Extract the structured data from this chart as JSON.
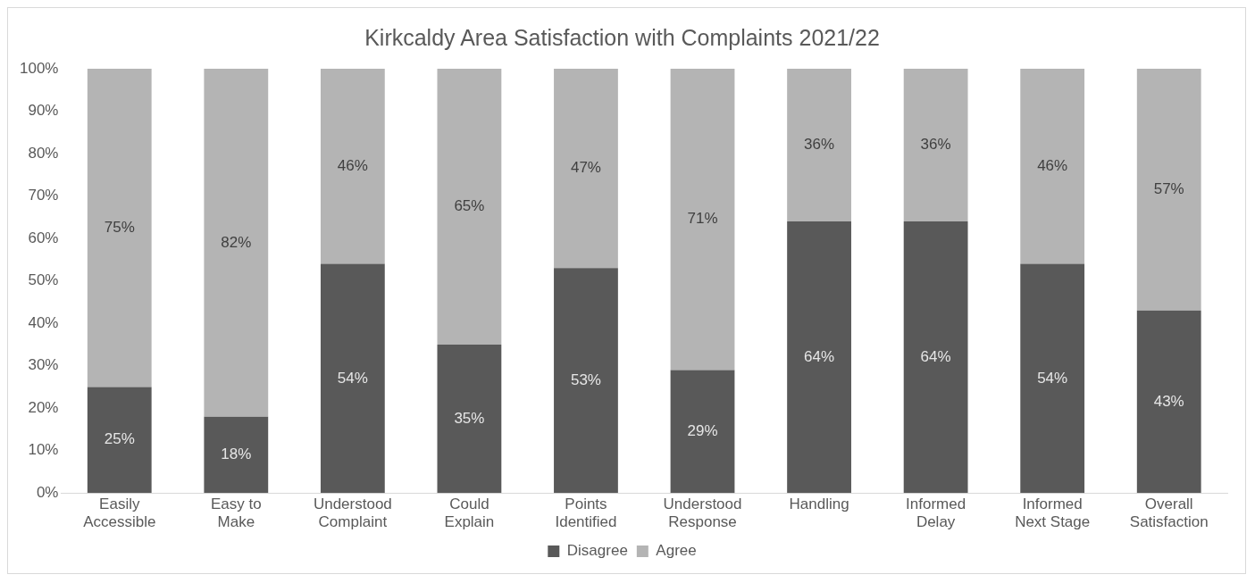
{
  "chart_data": {
    "type": "bar",
    "title": "Kirkcaldy Area Satisfaction with Complaints 2021/22",
    "stacked": true,
    "categories": [
      "Easily Accessible",
      "Easy to Make",
      "Understood Complaint",
      "Could Explain",
      "Points Identified",
      "Understood Response",
      "Handling",
      "Informed Delay",
      "Informed Next Stage",
      "Overall Satisfaction"
    ],
    "series": [
      {
        "name": "Disagree",
        "color": "#595959",
        "values": [
          25,
          18,
          54,
          35,
          53,
          29,
          64,
          64,
          54,
          43
        ],
        "value_labels": [
          "25%",
          "18%",
          "54%",
          "35%",
          "53%",
          "29%",
          "64%",
          "64%",
          "54%",
          "43%"
        ]
      },
      {
        "name": "Agree",
        "color": "#b4b4b4",
        "values": [
          75,
          82,
          46,
          65,
          47,
          71,
          36,
          36,
          46,
          57
        ],
        "value_labels": [
          "75%",
          "82%",
          "46%",
          "65%",
          "47%",
          "71%",
          "36%",
          "36%",
          "46%",
          "57%"
        ]
      }
    ],
    "ylim": [
      0,
      100
    ],
    "yticks": [
      {
        "value": 0,
        "label": "0%"
      },
      {
        "value": 10,
        "label": "10%"
      },
      {
        "value": 20,
        "label": "20%"
      },
      {
        "value": 30,
        "label": "30%"
      },
      {
        "value": 40,
        "label": "40%"
      },
      {
        "value": 50,
        "label": "50%"
      },
      {
        "value": 60,
        "label": "60%"
      },
      {
        "value": 70,
        "label": "70%"
      },
      {
        "value": 80,
        "label": "80%"
      },
      {
        "value": 90,
        "label": "90%"
      },
      {
        "value": 100,
        "label": "100%"
      }
    ],
    "grid": false,
    "legend": "bottom"
  }
}
